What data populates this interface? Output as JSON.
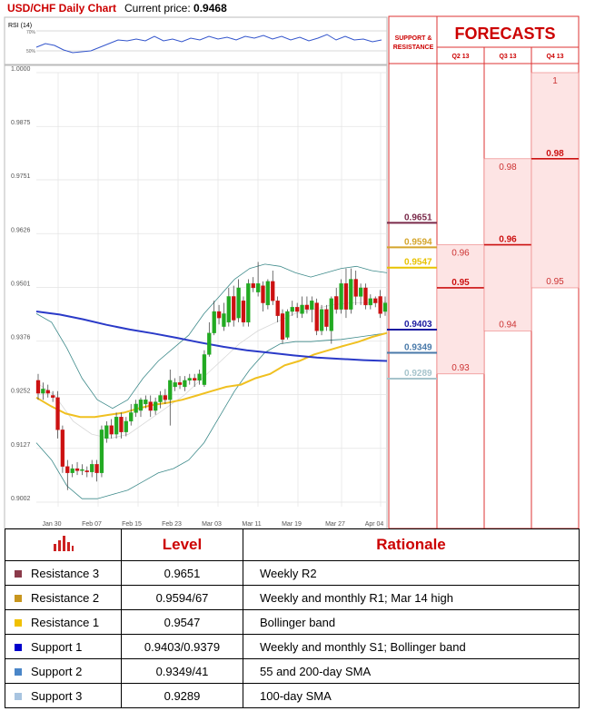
{
  "header": {
    "pair": "USD/CHF Daily Chart",
    "price_label": "Current price:",
    "price_value": "0.9468"
  },
  "rsi": {
    "label": "RSI (14)",
    "ticks": [
      "70%",
      "50%"
    ]
  },
  "forecast_panel": {
    "title": "FORECASTS",
    "sr_label_line1": "SUPPORT &",
    "sr_label_line2": "RESISTANCE",
    "columns": [
      "Q2 13",
      "Q3 13",
      "Q4 13"
    ],
    "q2": {
      "high": "0.96",
      "mid": "0.95",
      "low": "0.93"
    },
    "q3": {
      "high": "0.98",
      "mid": "0.96",
      "low": "0.94"
    },
    "q4": {
      "high": "1",
      "mid": "0.98",
      "low": "0.95"
    }
  },
  "levels": [
    {
      "value": "0.9651",
      "color": "#7a2a4a"
    },
    {
      "value": "0.9594",
      "color": "#d4a52c"
    },
    {
      "value": "0.9547",
      "color": "#e8c200"
    },
    {
      "value": "0.9403",
      "color": "#1a1aa0"
    },
    {
      "value": "0.9349",
      "color": "#4a7aaa"
    },
    {
      "value": "0.9289",
      "color": "#a6c4cc"
    }
  ],
  "chart_data": {
    "type": "candlestick",
    "y_ticks": [
      "1.0000",
      "0.9875",
      "0.9751",
      "0.9626",
      "0.9501",
      "0.9376",
      "0.9252",
      "0.9127",
      "0.9002"
    ],
    "ylim": [
      0.8985,
      1.0003
    ],
    "x_ticks": [
      "Jan 30",
      "Feb 07",
      "Feb 15",
      "Feb 23",
      "Mar 03",
      "Mar 11",
      "Mar 19",
      "Mar 27",
      "Apr 04"
    ],
    "grid": true,
    "candles": [
      [
        0.9285,
        0.9255,
        0.93,
        0.924
      ],
      [
        0.9255,
        0.9265,
        0.928,
        0.924
      ],
      [
        0.9262,
        0.9255,
        0.9275,
        0.9245
      ],
      [
        0.925,
        0.9245,
        0.926,
        0.9235
      ],
      [
        0.9245,
        0.917,
        0.926,
        0.915
      ],
      [
        0.917,
        0.9085,
        0.918,
        0.907
      ],
      [
        0.9085,
        0.907,
        0.91,
        0.903
      ],
      [
        0.907,
        0.908,
        0.909,
        0.906
      ],
      [
        0.908,
        0.9075,
        0.9095,
        0.9065
      ],
      [
        0.9075,
        0.9078,
        0.909,
        0.9065
      ],
      [
        0.9075,
        0.9072,
        0.9085,
        0.906
      ],
      [
        0.9072,
        0.909,
        0.91,
        0.906
      ],
      [
        0.909,
        0.907,
        0.91,
        0.905
      ],
      [
        0.907,
        0.917,
        0.918,
        0.906
      ],
      [
        0.915,
        0.918,
        0.919,
        0.914
      ],
      [
        0.918,
        0.916,
        0.9195,
        0.915
      ],
      [
        0.916,
        0.92,
        0.921,
        0.915
      ],
      [
        0.92,
        0.9165,
        0.921,
        0.915
      ],
      [
        0.9165,
        0.919,
        0.92,
        0.9155
      ],
      [
        0.919,
        0.921,
        0.923,
        0.918
      ],
      [
        0.921,
        0.923,
        0.924,
        0.92
      ],
      [
        0.9215,
        0.924,
        0.9245,
        0.92
      ],
      [
        0.923,
        0.924,
        0.925,
        0.922
      ],
      [
        0.9235,
        0.9215,
        0.925,
        0.92
      ],
      [
        0.9215,
        0.9235,
        0.9245,
        0.9205
      ],
      [
        0.9235,
        0.925,
        0.926,
        0.922
      ],
      [
        0.925,
        0.924,
        0.9265,
        0.923
      ],
      [
        0.924,
        0.9285,
        0.931,
        0.918
      ],
      [
        0.927,
        0.928,
        0.929,
        0.926
      ],
      [
        0.928,
        0.9275,
        0.9295,
        0.9265
      ],
      [
        0.927,
        0.9285,
        0.9295,
        0.926
      ],
      [
        0.9285,
        0.929,
        0.93,
        0.9275
      ],
      [
        0.929,
        0.9285,
        0.93,
        0.927
      ],
      [
        0.9285,
        0.93,
        0.931,
        0.9275
      ],
      [
        0.9275,
        0.9345,
        0.9355,
        0.927
      ],
      [
        0.9345,
        0.9395,
        0.942,
        0.934
      ],
      [
        0.9395,
        0.9445,
        0.947,
        0.939
      ],
      [
        0.9445,
        0.943,
        0.946,
        0.9415
      ],
      [
        0.941,
        0.944,
        0.9465,
        0.94
      ],
      [
        0.942,
        0.948,
        0.95,
        0.941
      ],
      [
        0.948,
        0.9425,
        0.9505,
        0.941
      ],
      [
        0.943,
        0.95,
        0.952,
        0.942
      ],
      [
        0.947,
        0.942,
        0.948,
        0.941
      ],
      [
        0.942,
        0.951,
        0.952,
        0.941
      ],
      [
        0.951,
        0.95,
        0.9525,
        0.949
      ],
      [
        0.949,
        0.951,
        0.956,
        0.948
      ],
      [
        0.9505,
        0.9465,
        0.9515,
        0.9445
      ],
      [
        0.946,
        0.9515,
        0.952,
        0.945
      ],
      [
        0.9515,
        0.947,
        0.954,
        0.946
      ],
      [
        0.947,
        0.9435,
        0.948,
        0.942
      ],
      [
        0.944,
        0.938,
        0.945,
        0.937
      ],
      [
        0.9385,
        0.9445,
        0.945,
        0.938
      ],
      [
        0.9445,
        0.9455,
        0.947,
        0.9435
      ],
      [
        0.9455,
        0.9445,
        0.9465,
        0.943
      ],
      [
        0.944,
        0.946,
        0.948,
        0.943
      ],
      [
        0.946,
        0.945,
        0.948,
        0.944
      ],
      [
        0.945,
        0.947,
        0.948,
        0.942
      ],
      [
        0.9465,
        0.94,
        0.9475,
        0.939
      ],
      [
        0.94,
        0.945,
        0.946,
        0.939
      ],
      [
        0.945,
        0.941,
        0.946,
        0.94
      ],
      [
        0.94,
        0.9475,
        0.948,
        0.937
      ],
      [
        0.948,
        0.945,
        0.95,
        0.944
      ],
      [
        0.945,
        0.951,
        0.952,
        0.944
      ],
      [
        0.951,
        0.945,
        0.9545,
        0.943
      ],
      [
        0.945,
        0.952,
        0.9545,
        0.944
      ],
      [
        0.952,
        0.948,
        0.954,
        0.946
      ],
      [
        0.948,
        0.95,
        0.951,
        0.946
      ],
      [
        0.95,
        0.946,
        0.951,
        0.945
      ],
      [
        0.946,
        0.9475,
        0.9485,
        0.945
      ],
      [
        0.9475,
        0.9465,
        0.948,
        0.9455
      ],
      [
        0.948,
        0.944,
        0.9495,
        0.943
      ],
      [
        0.9445,
        0.9465,
        0.948,
        0.9435
      ]
    ],
    "sma200": [
      0.9445,
      0.9438,
      0.9427,
      0.9414,
      0.9403,
      0.9394,
      0.9384,
      0.9373,
      0.9363,
      0.9355,
      0.9349,
      0.9343,
      0.9338,
      0.9335,
      0.9332,
      0.933
    ],
    "sma55": [
      0.9245,
      0.9225,
      0.9208,
      0.92,
      0.92,
      0.9205,
      0.921,
      0.922,
      0.9228,
      0.9233,
      0.924,
      0.925,
      0.926,
      0.927,
      0.9275,
      0.929,
      0.93,
      0.932,
      0.933,
      0.9345,
      0.9355,
      0.9365,
      0.9374,
      0.9386,
      0.9395
    ],
    "boll_upper": [
      0.944,
      0.942,
      0.936,
      0.929,
      0.924,
      0.922,
      0.924,
      0.929,
      0.933,
      0.936,
      0.939,
      0.944,
      0.948,
      0.952,
      0.9545,
      0.9555,
      0.955,
      0.9535,
      0.9525,
      0.9535,
      0.9545,
      0.955,
      0.954,
      0.9535
    ],
    "boll_lower": [
      0.914,
      0.91,
      0.904,
      0.901,
      0.901,
      0.902,
      0.903,
      0.905,
      0.907,
      0.908,
      0.91,
      0.914,
      0.92,
      0.926,
      0.931,
      0.935,
      0.937,
      0.9375,
      0.9375,
      0.9378,
      0.938,
      0.9385,
      0.939,
      0.9395
    ],
    "boll_mid": [
      0.928,
      0.925,
      0.919,
      0.916,
      0.915,
      0.916,
      0.919,
      0.922,
      0.925,
      0.929,
      0.933,
      0.937,
      0.94,
      0.942,
      0.944,
      0.945,
      0.946,
      0.9465,
      0.9465,
      0.9468
    ]
  },
  "table": {
    "headers": [
      "Level",
      "Rationale"
    ],
    "rows": [
      {
        "name": "Resistance 3",
        "level": "0.9651",
        "rationale": "Weekly R2",
        "color": "#8b3a4a"
      },
      {
        "name": "Resistance 2",
        "level": "0.9594/67",
        "rationale": "Weekly and monthly R1; Mar 14 high",
        "color": "#c8961e"
      },
      {
        "name": "Resistance 1",
        "level": "0.9547",
        "rationale": "Bollinger band",
        "color": "#f0c000"
      },
      {
        "name": "Support 1",
        "level": "0.9403/0.9379",
        "rationale": "Weekly and monthly S1; Bollinger band",
        "color": "#0000cc"
      },
      {
        "name": "Support 2",
        "level": "0.9349/41",
        "rationale": "55 and 200-day SMA",
        "color": "#4a86c8"
      },
      {
        "name": "Support 3",
        "level": "0.9289",
        "rationale": "100-day SMA",
        "color": "#a8c4e0"
      }
    ]
  }
}
